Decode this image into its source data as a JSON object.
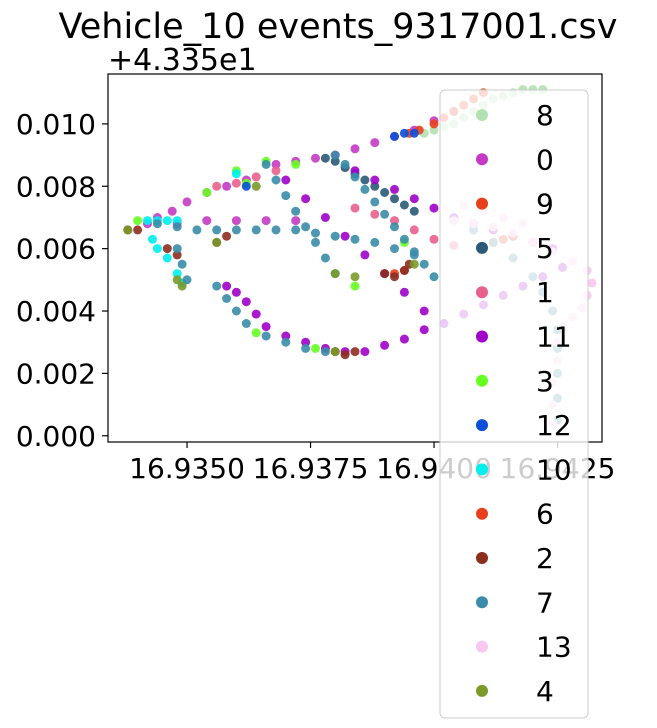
{
  "chart_data": {
    "type": "scatter",
    "title": "Vehicle_10 events_9317001.csv",
    "xlabel": "",
    "ylabel": "",
    "y_offset_label": "+4.335e1",
    "xlim": [
      16.9334,
      16.9434
    ],
    "ylim": [
      -0.0002,
      0.0116
    ],
    "x_ticks": [
      16.935,
      16.9375,
      16.94,
      16.9425
    ],
    "x_tick_labels": [
      "16.9350",
      "16.9375",
      "16.9400",
      "16.9425"
    ],
    "y_ticks": [
      0.0,
      0.002,
      0.004,
      0.006,
      0.008,
      0.01
    ],
    "y_tick_labels": [
      "0.000",
      "0.002",
      "0.004",
      "0.006",
      "0.008",
      "0.010"
    ],
    "grid": false,
    "legend_position": "right",
    "series": [
      {
        "name": "8",
        "color": "#b2e0b0",
        "points": [
          [
            16.9398,
            0.0097
          ],
          [
            16.94,
            0.0098
          ],
          [
            16.9402,
            0.0099
          ],
          [
            16.9404,
            0.01
          ],
          [
            16.9406,
            0.0102
          ],
          [
            16.9408,
            0.0104
          ],
          [
            16.941,
            0.0106
          ],
          [
            16.9412,
            0.0108
          ],
          [
            16.9414,
            0.0109
          ],
          [
            16.9416,
            0.011
          ],
          [
            16.9418,
            0.0111
          ],
          [
            16.942,
            0.0111
          ],
          [
            16.9422,
            0.0111
          ]
        ]
      },
      {
        "name": "0",
        "color": "#c43ac4",
        "points": [
          [
            16.9368,
            0.0087
          ],
          [
            16.9372,
            0.0088
          ],
          [
            16.9376,
            0.0089
          ],
          [
            16.938,
            0.009
          ],
          [
            16.9384,
            0.0092
          ],
          [
            16.9388,
            0.0094
          ],
          [
            16.9392,
            0.0096
          ],
          [
            16.9396,
            0.0098
          ],
          [
            16.94,
            0.0101
          ],
          [
            16.9404,
            0.0104
          ],
          [
            16.9362,
            0.0082
          ],
          [
            16.9358,
            0.008
          ],
          [
            16.9354,
            0.0078
          ],
          [
            16.935,
            0.0075
          ],
          [
            16.9347,
            0.0072
          ],
          [
            16.9344,
            0.007
          ],
          [
            16.9342,
            0.0068
          ],
          [
            16.9348,
            0.0068
          ],
          [
            16.9354,
            0.0069
          ],
          [
            16.936,
            0.0069
          ],
          [
            16.9366,
            0.0069
          ],
          [
            16.9372,
            0.0069
          ]
        ]
      },
      {
        "name": "9",
        "color": "#e8401c",
        "points": [
          [
            16.94,
            0.01
          ],
          [
            16.9402,
            0.0102
          ],
          [
            16.9404,
            0.0104
          ],
          [
            16.9406,
            0.0106
          ],
          [
            16.9408,
            0.0108
          ],
          [
            16.941,
            0.011
          ],
          [
            16.9397,
            0.0098
          ],
          [
            16.9395,
            0.0097
          ]
        ]
      },
      {
        "name": "5",
        "color": "#2a5a78",
        "points": [
          [
            16.9378,
            0.0089
          ],
          [
            16.938,
            0.0088
          ],
          [
            16.9382,
            0.0086
          ],
          [
            16.9384,
            0.0084
          ],
          [
            16.9386,
            0.0082
          ],
          [
            16.9388,
            0.008
          ],
          [
            16.939,
            0.0078
          ],
          [
            16.9392,
            0.0076
          ],
          [
            16.9394,
            0.0074
          ],
          [
            16.9396,
            0.0072
          ]
        ]
      },
      {
        "name": "1",
        "color": "#e8608c",
        "points": [
          [
            16.9356,
            0.008
          ],
          [
            16.936,
            0.0081
          ],
          [
            16.9364,
            0.0083
          ],
          [
            16.9368,
            0.0085
          ],
          [
            16.9384,
            0.0073
          ],
          [
            16.9388,
            0.0071
          ],
          [
            16.9392,
            0.0069
          ],
          [
            16.9396,
            0.0066
          ],
          [
            16.94,
            0.0063
          ],
          [
            16.9404,
            0.0061
          ]
        ]
      },
      {
        "name": "11",
        "color": "#a000c8",
        "points": [
          [
            16.9358,
            0.0048
          ],
          [
            16.936,
            0.0046
          ],
          [
            16.9362,
            0.0043
          ],
          [
            16.9364,
            0.0039
          ],
          [
            16.9366,
            0.0035
          ],
          [
            16.937,
            0.0032
          ],
          [
            16.9374,
            0.003
          ],
          [
            16.9378,
            0.0028
          ],
          [
            16.9382,
            0.0027
          ],
          [
            16.9386,
            0.0027
          ],
          [
            16.939,
            0.0029
          ],
          [
            16.9394,
            0.0031
          ],
          [
            16.9398,
            0.0034
          ],
          [
            16.9402,
            0.0036
          ],
          [
            16.9406,
            0.0039
          ],
          [
            16.941,
            0.0042
          ],
          [
            16.9414,
            0.0045
          ],
          [
            16.9418,
            0.0048
          ],
          [
            16.9422,
            0.0051
          ],
          [
            16.9426,
            0.0054
          ],
          [
            16.9384,
            0.0085
          ],
          [
            16.9388,
            0.0082
          ],
          [
            16.9392,
            0.0079
          ],
          [
            16.9396,
            0.0076
          ],
          [
            16.94,
            0.0073
          ],
          [
            16.9404,
            0.007
          ],
          [
            16.9408,
            0.0068
          ],
          [
            16.9412,
            0.0066
          ],
          [
            16.9416,
            0.0064
          ],
          [
            16.942,
            0.0062
          ],
          [
            16.9424,
            0.006
          ],
          [
            16.937,
            0.0082
          ],
          [
            16.9374,
            0.0076
          ],
          [
            16.9378,
            0.007
          ],
          [
            16.9382,
            0.0064
          ],
          [
            16.9386,
            0.0058
          ],
          [
            16.939,
            0.0052
          ],
          [
            16.9394,
            0.0046
          ],
          [
            16.9398,
            0.004
          ],
          [
            16.9402,
            0.0036
          ]
        ]
      },
      {
        "name": "3",
        "color": "#66ff22",
        "points": [
          [
            16.9354,
            0.0078
          ],
          [
            16.936,
            0.0085
          ],
          [
            16.9366,
            0.0088
          ],
          [
            16.9372,
            0.0087
          ],
          [
            16.9364,
            0.0033
          ],
          [
            16.9376,
            0.0028
          ],
          [
            16.9384,
            0.0048
          ],
          [
            16.9394,
            0.0062
          ],
          [
            16.9362,
            0.0081
          ],
          [
            16.934,
            0.0069
          ]
        ]
      },
      {
        "name": "12",
        "color": "#0a4fd8",
        "points": [
          [
            16.9392,
            0.0096
          ],
          [
            16.9394,
            0.0097
          ],
          [
            16.9396,
            0.0097
          ],
          [
            16.9362,
            0.008
          ]
        ]
      },
      {
        "name": "10",
        "color": "#00f0ee",
        "points": [
          [
            16.9342,
            0.0069
          ],
          [
            16.9344,
            0.0069
          ],
          [
            16.9346,
            0.0069
          ],
          [
            16.9348,
            0.0069
          ],
          [
            16.936,
            0.0084
          ],
          [
            16.9343,
            0.0063
          ],
          [
            16.9344,
            0.006
          ],
          [
            16.9346,
            0.0057
          ],
          [
            16.9348,
            0.0052
          ],
          [
            16.9349,
            0.0049
          ]
        ]
      },
      {
        "name": "6",
        "color": "#e8401c",
        "points": [
          [
            16.9412,
            0.0062
          ],
          [
            16.9414,
            0.0063
          ],
          [
            16.9416,
            0.0064
          ],
          [
            16.9392,
            0.0052
          ],
          [
            16.9394,
            0.0053
          ]
        ]
      },
      {
        "name": "2",
        "color": "#8c2e1e",
        "points": [
          [
            16.938,
            0.0027
          ],
          [
            16.9382,
            0.0026
          ],
          [
            16.9384,
            0.0027
          ],
          [
            16.939,
            0.0052
          ],
          [
            16.9392,
            0.0051
          ],
          [
            16.9394,
            0.0053
          ],
          [
            16.9395,
            0.0055
          ],
          [
            16.9338,
            0.0066
          ],
          [
            16.934,
            0.0066
          ],
          [
            16.9356,
            0.0062
          ],
          [
            16.9358,
            0.0064
          ],
          [
            16.9346,
            0.006
          ],
          [
            16.9348,
            0.0058
          ]
        ]
      },
      {
        "name": "7",
        "color": "#3a8ca8",
        "points": [
          [
            16.9344,
            0.0068
          ],
          [
            16.9348,
            0.0067
          ],
          [
            16.9352,
            0.0066
          ],
          [
            16.9356,
            0.0066
          ],
          [
            16.936,
            0.0066
          ],
          [
            16.9364,
            0.0066
          ],
          [
            16.9368,
            0.0066
          ],
          [
            16.9372,
            0.0066
          ],
          [
            16.9376,
            0.0065
          ],
          [
            16.938,
            0.0064
          ],
          [
            16.9384,
            0.0063
          ],
          [
            16.9388,
            0.0062
          ],
          [
            16.9392,
            0.006
          ],
          [
            16.9396,
            0.0058
          ],
          [
            16.9348,
            0.006
          ],
          [
            16.9349,
            0.0055
          ],
          [
            16.935,
            0.005
          ],
          [
            16.9356,
            0.0048
          ],
          [
            16.9358,
            0.0044
          ],
          [
            16.936,
            0.004
          ],
          [
            16.9362,
            0.0036
          ],
          [
            16.9366,
            0.0032
          ],
          [
            16.937,
            0.003
          ],
          [
            16.9374,
            0.0028
          ],
          [
            16.9378,
            0.0027
          ],
          [
            16.938,
            0.009
          ],
          [
            16.9382,
            0.0087
          ],
          [
            16.9384,
            0.0083
          ],
          [
            16.9386,
            0.0079
          ],
          [
            16.9388,
            0.0075
          ],
          [
            16.939,
            0.0071
          ],
          [
            16.9392,
            0.0067
          ],
          [
            16.9394,
            0.0063
          ],
          [
            16.9396,
            0.0059
          ],
          [
            16.9398,
            0.0055
          ],
          [
            16.94,
            0.0051
          ],
          [
            16.9366,
            0.0087
          ],
          [
            16.9368,
            0.0082
          ],
          [
            16.937,
            0.0077
          ],
          [
            16.9372,
            0.0072
          ],
          [
            16.9374,
            0.0067
          ],
          [
            16.9376,
            0.0062
          ],
          [
            16.9378,
            0.0057
          ],
          [
            16.938,
            0.0052
          ],
          [
            16.9404,
            0.0069
          ],
          [
            16.9408,
            0.0066
          ],
          [
            16.9412,
            0.0062
          ],
          [
            16.9416,
            0.0057
          ],
          [
            16.942,
            0.0051
          ],
          [
            16.9422,
            0.0046
          ],
          [
            16.9424,
            0.004
          ],
          [
            16.9425,
            0.0034
          ],
          [
            16.9425,
            0.0028
          ],
          [
            16.9425,
            0.002
          ],
          [
            16.9425,
            0.0012
          ],
          [
            16.9425,
            0.0005
          ]
        ]
      },
      {
        "name": "13",
        "color": "#f8c8f0",
        "points": [
          [
            16.9404,
            0.0069
          ],
          [
            16.9408,
            0.0068
          ],
          [
            16.9412,
            0.0067
          ],
          [
            16.9416,
            0.0065
          ],
          [
            16.942,
            0.0062
          ],
          [
            16.9424,
            0.0059
          ],
          [
            16.9428,
            0.0056
          ],
          [
            16.9431,
            0.0053
          ],
          [
            16.9432,
            0.0049
          ],
          [
            16.9431,
            0.0045
          ],
          [
            16.943,
            0.0041
          ],
          [
            16.9428,
            0.0038
          ],
          [
            16.9426,
            0.0035
          ],
          [
            16.9425,
            0.003
          ],
          [
            16.9425,
            0.0024
          ],
          [
            16.9424,
            0.0017
          ],
          [
            16.9424,
            0.001
          ],
          [
            16.9424,
            0.0004
          ],
          [
            16.9406,
            0.0074
          ],
          [
            16.941,
            0.0072
          ],
          [
            16.9414,
            0.007
          ],
          [
            16.9418,
            0.0068
          ]
        ]
      },
      {
        "name": "4",
        "color": "#7a9a2a",
        "points": [
          [
            16.9348,
            0.005
          ],
          [
            16.9349,
            0.0048
          ],
          [
            16.9338,
            0.0066
          ],
          [
            16.9356,
            0.0062
          ],
          [
            16.9364,
            0.008
          ],
          [
            16.938,
            0.0052
          ],
          [
            16.9384,
            0.0051
          ],
          [
            16.938,
            0.0027
          ],
          [
            16.9396,
            0.0055
          ]
        ]
      }
    ],
    "legend_order": [
      "8",
      "0",
      "9",
      "5",
      "1",
      "11",
      "3",
      "12",
      "10",
      "6",
      "2",
      "7",
      "13",
      "4"
    ]
  }
}
